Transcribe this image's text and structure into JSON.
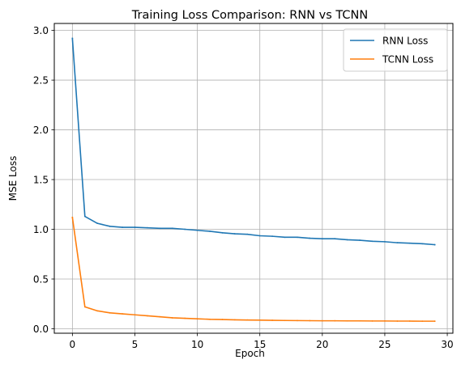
{
  "chart_data": {
    "type": "line",
    "title": "Training Loss Comparison: RNN vs TCNN",
    "xlabel": "Epoch",
    "ylabel": "MSE Loss",
    "xlim": [
      -1.45,
      30.45
    ],
    "ylim": [
      -0.045,
      3.07
    ],
    "xticks": [
      0,
      5,
      10,
      15,
      20,
      25,
      30
    ],
    "yticks": [
      0.0,
      0.5,
      1.0,
      1.5,
      2.0,
      2.5,
      3.0
    ],
    "xtick_labels": [
      "0",
      "5",
      "10",
      "15",
      "20",
      "25",
      "30"
    ],
    "ytick_labels": [
      "0.0",
      "0.5",
      "1.0",
      "1.5",
      "2.0",
      "2.5",
      "3.0"
    ],
    "grid": true,
    "legend_position": "top-right",
    "x": [
      0,
      1,
      2,
      3,
      4,
      5,
      6,
      7,
      8,
      9,
      10,
      11,
      12,
      13,
      14,
      15,
      16,
      17,
      18,
      19,
      20,
      21,
      22,
      23,
      24,
      25,
      26,
      27,
      28,
      29
    ],
    "series": [
      {
        "name": "RNN Loss",
        "color": "#1f77b4",
        "values": [
          2.92,
          1.13,
          1.06,
          1.03,
          1.02,
          1.02,
          1.015,
          1.01,
          1.01,
          1.0,
          0.99,
          0.98,
          0.965,
          0.955,
          0.95,
          0.935,
          0.93,
          0.92,
          0.92,
          0.91,
          0.905,
          0.905,
          0.895,
          0.89,
          0.88,
          0.875,
          0.865,
          0.86,
          0.855,
          0.845
        ]
      },
      {
        "name": "TCNN Loss",
        "color": "#ff7f0e",
        "values": [
          1.12,
          0.22,
          0.18,
          0.16,
          0.15,
          0.14,
          0.13,
          0.12,
          0.11,
          0.105,
          0.1,
          0.095,
          0.093,
          0.09,
          0.088,
          0.087,
          0.085,
          0.083,
          0.082,
          0.081,
          0.08,
          0.08,
          0.079,
          0.079,
          0.078,
          0.078,
          0.077,
          0.077,
          0.076,
          0.076
        ]
      }
    ]
  }
}
